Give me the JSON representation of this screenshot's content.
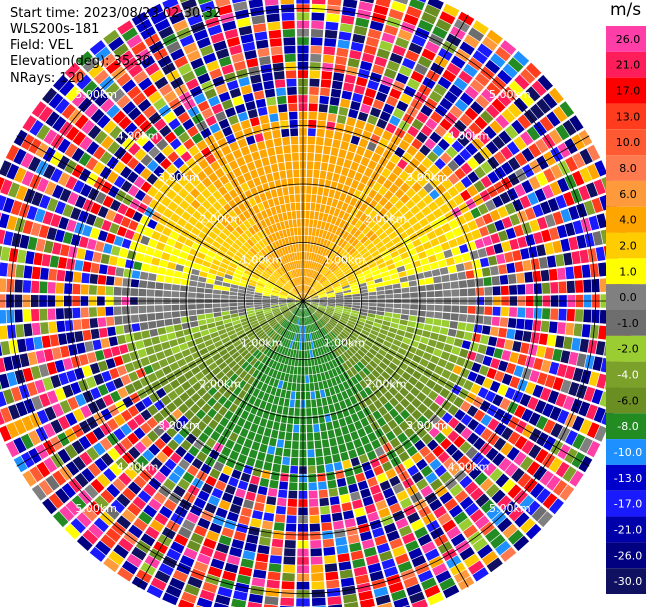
{
  "header": {
    "start_time": "Start time: 2023/08/23 02:30:32",
    "instrument": "WLS200s-181",
    "field": "Field: VEL",
    "elevation": "Elevation(deg): 35.30",
    "nrays": "NRays: 120"
  },
  "colorbar": {
    "unit": "m/s",
    "ticks": [
      "26.0",
      "21.0",
      "17.0",
      "13.0",
      "10.0",
      "8.0",
      "6.0",
      "4.0",
      "2.0",
      "1.0",
      "0.0",
      "-1.0",
      "-2.0",
      "-4.0",
      "-6.0",
      "-8.0",
      "-10.0",
      "-13.0",
      "-17.0",
      "-21.0",
      "-26.0",
      "-30.0"
    ],
    "colors": [
      "#ff3ea8",
      "#ff1e5a",
      "#ff0000",
      "#ff3c1e",
      "#ff5a32",
      "#ff7a4e",
      "#ff9a3c",
      "#ffa500",
      "#ffcc00",
      "#ffff00",
      "#808080",
      "#6e6e6e",
      "#9acd32",
      "#7ca12a",
      "#6b8e23",
      "#228b22",
      "#1e90ff",
      "#0000cd",
      "#1a1aff",
      "#0000aa",
      "#000080",
      "#101060"
    ]
  },
  "chart_data": {
    "type": "ppi",
    "field": "VEL",
    "units": "m/s",
    "nrays": 120,
    "elevation_deg": 35.3,
    "range_rings_km": [
      1.0,
      2.0,
      3.0,
      4.0,
      5.0
    ],
    "ring_labels": [
      "1.00km",
      "2.00km",
      "3.00km",
      "4.00km",
      "5.00km"
    ],
    "max_range_km": 5.65,
    "azimuth_lines_deg": [
      0,
      30,
      60,
      90,
      120,
      150,
      180,
      210,
      240,
      270,
      300,
      330
    ],
    "near_field_pattern": {
      "north_sector": "positive 4.0 to 6.0 m/s (orange) near centre, 2.0 m/s (yellow) on flanks",
      "south_sector": "negative -4.0 to -8.0 m/s (green)",
      "east_west_axis": "near 0.0 m/s (gray)",
      "beyond_about_3.3km": "noise, mixed colours"
    }
  }
}
